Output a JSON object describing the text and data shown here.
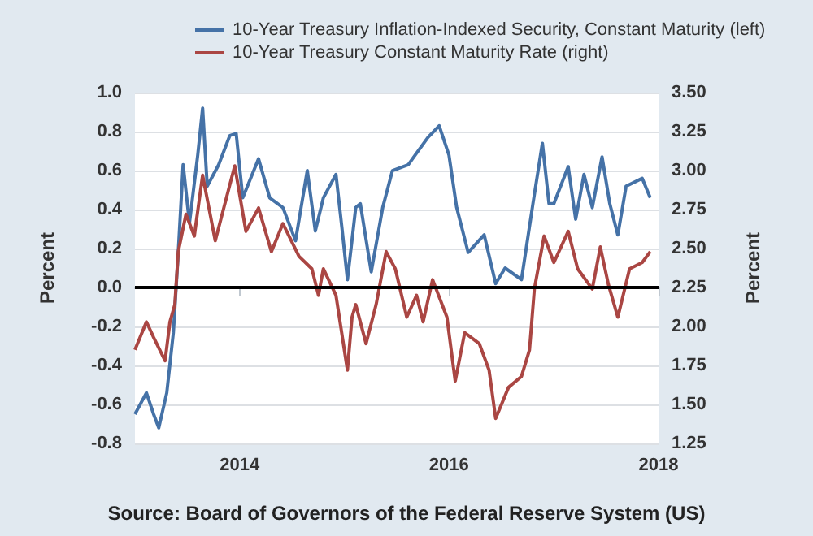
{
  "chart_data": {
    "type": "line",
    "ylabel": "Percent",
    "y2label": "Percent",
    "annotations": [
      "Source: Board of Governors of the Federal Reserve System (US)"
    ],
    "xlim": [
      "2013-01-01",
      "2018-01-01"
    ],
    "xticks": [
      "2014",
      "2016",
      "2018"
    ],
    "ylim": [
      -0.8,
      1.0
    ],
    "yticks": [
      -0.8,
      -0.6,
      -0.4,
      -0.2,
      {
        "value": 0,
        "label": "0.0"
      },
      0.2,
      0.4,
      0.6,
      0.8,
      {
        "value": 1,
        "label": "1.0"
      }
    ],
    "y2lim": [
      1.25,
      3.5
    ],
    "y2ticks": [
      1.25,
      {
        "value": 1.5,
        "label": "1.50"
      },
      1.75,
      {
        "value": 2,
        "label": "2.00"
      },
      2.25,
      {
        "value": 2.5,
        "label": "2.50"
      },
      2.75,
      {
        "value": 3,
        "label": "3.00"
      },
      3.25,
      {
        "value": 3.5,
        "label": "3.50"
      }
    ],
    "grid": "y",
    "legend": "top",
    "line_style": "solid",
    "marker": "none",
    "ref_lines": [
      {
        "axis": "y",
        "value": 0,
        "color": "#000000"
      }
    ],
    "series": [
      {
        "name": "10-Year Treasury Inflation-Indexed Security, Constant Maturity (left)",
        "color": "#4572a7",
        "x": [
          "2013-01-01",
          "2013-02-10",
          "2013-03-07",
          "2013-03-25",
          "2013-04-22",
          "2013-05-15",
          "2013-06-01",
          "2013-06-18",
          "2013-07-10",
          "2013-08-08",
          "2013-08-25",
          "2013-09-10",
          "2013-10-20",
          "2013-11-28",
          "2013-12-20",
          "2014-01-12",
          "2014-03-08",
          "2014-04-16",
          "2014-06-01",
          "2014-07-15",
          "2014-08-25",
          "2014-09-22",
          "2014-10-20",
          "2014-12-03",
          "2014-12-25",
          "2015-01-12",
          "2015-02-10",
          "2015-02-26",
          "2015-04-05",
          "2015-05-15",
          "2015-06-18",
          "2015-08-12",
          "2015-10-20",
          "2015-11-28",
          "2016-01-01",
          "2016-01-28",
          "2016-03-08",
          "2016-05-03",
          "2016-06-12",
          "2016-07-15",
          "2016-09-10",
          "2016-10-20",
          "2016-11-22",
          "2016-12-15",
          "2017-01-01",
          "2017-02-20",
          "2017-03-18",
          "2017-04-16",
          "2017-05-15",
          "2017-06-18",
          "2017-07-15",
          "2017-08-12",
          "2017-09-10",
          "2017-11-05",
          "2017-12-03"
        ],
        "values": [
          -0.65,
          -0.54,
          -0.65,
          -0.72,
          -0.54,
          -0.23,
          0.18,
          0.63,
          0.33,
          0.68,
          0.92,
          0.52,
          0.63,
          0.78,
          0.79,
          0.46,
          0.66,
          0.46,
          0.41,
          0.24,
          0.6,
          0.29,
          0.46,
          0.58,
          0.29,
          0.04,
          0.41,
          0.43,
          0.08,
          0.41,
          0.6,
          0.63,
          0.77,
          0.83,
          0.68,
          0.41,
          0.18,
          0.27,
          0.02,
          0.1,
          0.04,
          0.43,
          0.74,
          0.43,
          0.43,
          0.62,
          0.35,
          0.58,
          0.41,
          0.67,
          0.43,
          0.27,
          0.52,
          0.56,
          0.46
        ]
      },
      {
        "name": "10-Year Treasury Constant Maturity Rate (right)",
        "color": "#aa4643",
        "axis": "y2",
        "x": [
          "2013-01-01",
          "2013-02-10",
          "2013-03-07",
          "2013-04-16",
          "2013-05-03",
          "2013-05-20",
          "2013-06-01",
          "2013-06-28",
          "2013-07-27",
          "2013-08-25",
          "2013-10-08",
          "2013-12-15",
          "2014-01-23",
          "2014-03-08",
          "2014-04-22",
          "2014-06-01",
          "2014-07-27",
          "2014-09-10",
          "2014-10-03",
          "2014-10-20",
          "2014-12-03",
          "2015-01-12",
          "2015-01-28",
          "2015-02-10",
          "2015-03-18",
          "2015-04-22",
          "2015-05-27",
          "2015-06-28",
          "2015-08-07",
          "2015-09-10",
          "2015-10-03",
          "2015-11-05",
          "2015-12-25",
          "2016-01-23",
          "2016-02-25",
          "2016-04-16",
          "2016-05-20",
          "2016-06-12",
          "2016-07-27",
          "2016-09-10",
          "2016-10-08",
          "2016-10-25",
          "2016-11-28",
          "2017-01-01",
          "2017-02-20",
          "2017-03-25",
          "2017-05-15",
          "2017-06-12",
          "2017-07-10",
          "2017-08-12",
          "2017-09-22",
          "2017-11-05",
          "2017-12-03"
        ],
        "values": [
          1.85,
          2.03,
          1.93,
          1.78,
          2.03,
          2.14,
          2.48,
          2.72,
          2.58,
          2.97,
          2.55,
          3.03,
          2.61,
          2.76,
          2.48,
          2.66,
          2.45,
          2.37,
          2.2,
          2.37,
          2.2,
          1.72,
          2.06,
          2.14,
          1.89,
          2.14,
          2.48,
          2.37,
          2.06,
          2.2,
          2.03,
          2.3,
          2.06,
          1.65,
          1.96,
          1.89,
          1.72,
          1.41,
          1.61,
          1.68,
          1.85,
          2.24,
          2.58,
          2.41,
          2.61,
          2.37,
          2.24,
          2.51,
          2.27,
          2.06,
          2.37,
          2.41,
          2.48
        ]
      }
    ]
  }
}
